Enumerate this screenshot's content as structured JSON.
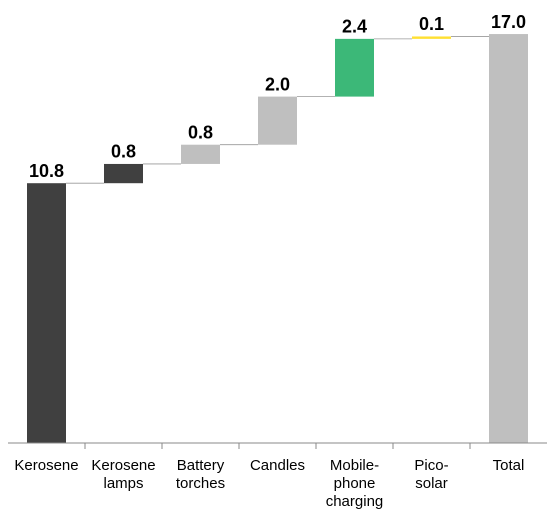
{
  "chart_data": {
    "type": "waterfall",
    "categories": [
      [
        "Kerosene"
      ],
      [
        "Kerosene",
        "lamps"
      ],
      [
        "Battery",
        "torches"
      ],
      [
        "Candles"
      ],
      [
        "Mobile-",
        "phone",
        "charging"
      ],
      [
        "Pico-",
        "solar"
      ],
      [
        "Total"
      ]
    ],
    "values": [
      10.8,
      0.8,
      0.8,
      2.0,
      2.4,
      0.1,
      17.0
    ],
    "value_labels": [
      "10.8",
      "0.8",
      "0.8",
      "2.0",
      "2.4",
      "0.1",
      "17.0"
    ],
    "colors": [
      "#404040",
      "#404040",
      "#bfbfbf",
      "#bfbfbf",
      "#3cb878",
      "#ffe033",
      "#bfbfbf"
    ],
    "total_last": true,
    "ylim": [
      0,
      18
    ]
  }
}
